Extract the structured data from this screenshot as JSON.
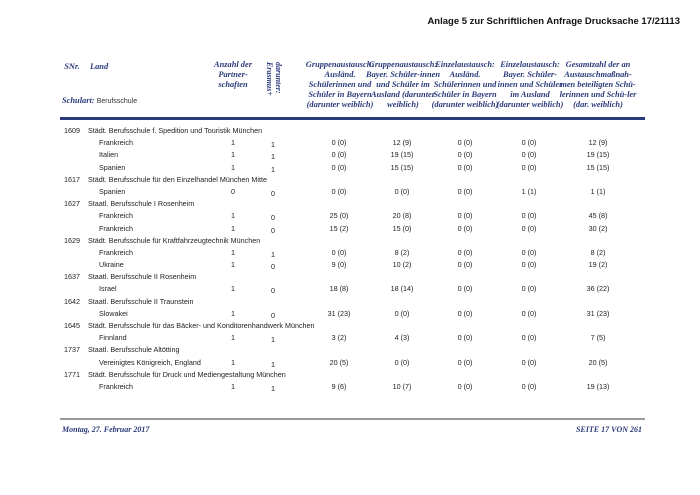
{
  "title": "Anlage 5 zur Schriftlichen Anfrage Drucksache 17/21113",
  "header": {
    "snr": "SNr.",
    "land": "Land",
    "schulart_label": "Schulart:",
    "schulart_value": "Berufsschule",
    "anzahl": "Anzahl der Partner-schaften",
    "darunter": "darunter: Erasmus+",
    "g1": "Gruppenaustausch: Ausländ. Schülerinnen und Schüler in Bayern (darunter weiblich)",
    "g2": "Gruppenaustausch: Bayer. Schüler-innen und Schüler im Ausland (darunter weiblich)",
    "e1": "Einzelaustausch: Ausländ. Schülerinnen und Schüler in Bayern (darunter weiblich)",
    "e2": "Einzelaustausch: Bayer. Schüler-innen und Schüler im Ausland (darunter weiblich)",
    "tot": "Gesamtzahl der an Austauschmaßnah-men beteiligten Schü-lerinnen und Schü-ler (dar. weiblich)"
  },
  "schools": [
    {
      "snr": "1609",
      "name": "Städt. Berufsschule f. Spedition und Touristik München",
      "entries": [
        [
          "Frankreich",
          "1",
          "1",
          "0 (0)",
          "12 (9)",
          "0 (0)",
          "0 (0)",
          "12 (9)"
        ],
        [
          "Italien",
          "1",
          "1",
          "0 (0)",
          "19 (15)",
          "0 (0)",
          "0 (0)",
          "19 (15)"
        ],
        [
          "Spanien",
          "1",
          "1",
          "0 (0)",
          "15 (15)",
          "0 (0)",
          "0 (0)",
          "15 (15)"
        ]
      ]
    },
    {
      "snr": "1617",
      "name": "Städt. Berufsschule für den Einzelhandel München Mitte",
      "entries": [
        [
          "Spanien",
          "0",
          "0",
          "0 (0)",
          "0 (0)",
          "0 (0)",
          "1 (1)",
          "1 (1)"
        ]
      ]
    },
    {
      "snr": "1627",
      "name": "Staatl. Berufsschule I Rosenheim",
      "entries": [
        [
          "Frankreich",
          "1",
          "0",
          "25 (0)",
          "20 (8)",
          "0 (0)",
          "0 (0)",
          "45 (8)"
        ],
        [
          "Frankreich",
          "1",
          "0",
          "15 (2)",
          "15 (0)",
          "0 (0)",
          "0 (0)",
          "30 (2)"
        ]
      ]
    },
    {
      "snr": "1629",
      "name": "Städt. Berufsschule für Kraftfahrzeugtechnik München",
      "entries": [
        [
          "Frankreich",
          "1",
          "1",
          "0 (0)",
          "8 (2)",
          "0 (0)",
          "0 (0)",
          "8 (2)"
        ],
        [
          "Ukraine",
          "1",
          "0",
          "9 (0)",
          "10 (2)",
          "0 (0)",
          "0 (0)",
          "19 (2)"
        ]
      ]
    },
    {
      "snr": "1637",
      "name": "Staatl. Berufsschule II Rosenheim",
      "entries": [
        [
          "Israel",
          "1",
          "0",
          "18 (8)",
          "18 (14)",
          "0 (0)",
          "0 (0)",
          "36 (22)"
        ]
      ]
    },
    {
      "snr": "1642",
      "name": "Staatl. Berufsschule II Traunstein",
      "entries": [
        [
          "Slowakei",
          "1",
          "0",
          "31 (23)",
          "0 (0)",
          "0 (0)",
          "0 (0)",
          "31 (23)"
        ]
      ]
    },
    {
      "snr": "1645",
      "name": "Städt. Berufsschule für das Bäcker- und Konditorenhandwerk München",
      "entries": [
        [
          "Finnland",
          "1",
          "1",
          "3 (2)",
          "4 (3)",
          "0 (0)",
          "0 (0)",
          "7 (5)"
        ]
      ]
    },
    {
      "snr": "1737",
      "name": "Staatl. Berufsschule Altötting",
      "entries": [
        [
          "Vereinigtes Königreich, England",
          "1",
          "1",
          "20 (5)",
          "0 (0)",
          "0 (0)",
          "0 (0)",
          "20 (5)"
        ]
      ]
    },
    {
      "snr": "1771",
      "name": "Städt. Berufsschule  für Druck und Mediengestaltung München",
      "entries": [
        [
          "Frankreich",
          "1",
          "1",
          "9 (6)",
          "10 (7)",
          "0 (0)",
          "0 (0)",
          "19 (13)"
        ]
      ]
    }
  ],
  "footer": {
    "date": "Montag, 27. Februar 2017",
    "page": "SEITE 17 VON 261"
  }
}
